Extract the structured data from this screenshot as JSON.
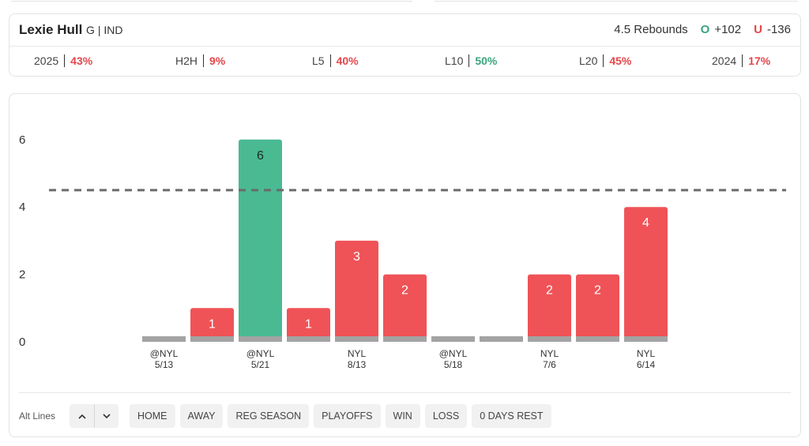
{
  "player": {
    "name": "Lexie Hull",
    "meta": "G | IND"
  },
  "line": {
    "label": "4.5 Rebounds",
    "over_symbol": "O",
    "over_odds": "+102",
    "under_symbol": "U",
    "under_odds": "-136"
  },
  "stats": [
    {
      "label": "2025",
      "value": "43%",
      "status": "red"
    },
    {
      "label": "H2H",
      "value": "9%",
      "status": "red"
    },
    {
      "label": "L5",
      "value": "40%",
      "status": "red"
    },
    {
      "label": "L10",
      "value": "50%",
      "status": "green"
    },
    {
      "label": "L20",
      "value": "45%",
      "status": "red"
    },
    {
      "label": "2024",
      "value": "17%",
      "status": "red"
    }
  ],
  "colors": {
    "over": "#4aba93",
    "under": "#ef5357",
    "zero": "#a3a3a3",
    "line": "#6b6b6b"
  },
  "chart_data": {
    "type": "bar",
    "values": [
      0,
      1,
      6,
      1,
      3,
      2,
      0,
      0,
      2,
      2,
      4
    ],
    "x_labels": [
      [
        "@NYL",
        "5/13"
      ],
      null,
      [
        "@NYL",
        "5/21"
      ],
      null,
      [
        "NYL",
        "8/13"
      ],
      null,
      [
        "@NYL",
        "5/18"
      ],
      null,
      [
        "NYL",
        "7/6"
      ],
      null,
      [
        "NYL",
        "6/14"
      ]
    ],
    "threshold": 4.5,
    "y_ticks": [
      0,
      2,
      4,
      6
    ],
    "ylim": [
      0,
      6
    ],
    "grid": false,
    "legend": "none"
  },
  "controls": {
    "alt_lines_label": "Alt Lines",
    "up_icon": "chevron-up-icon",
    "down_icon": "chevron-down-icon",
    "filters": [
      "HOME",
      "AWAY",
      "REG SEASON",
      "PLAYOFFS",
      "WIN",
      "LOSS",
      "0 DAYS REST"
    ]
  }
}
